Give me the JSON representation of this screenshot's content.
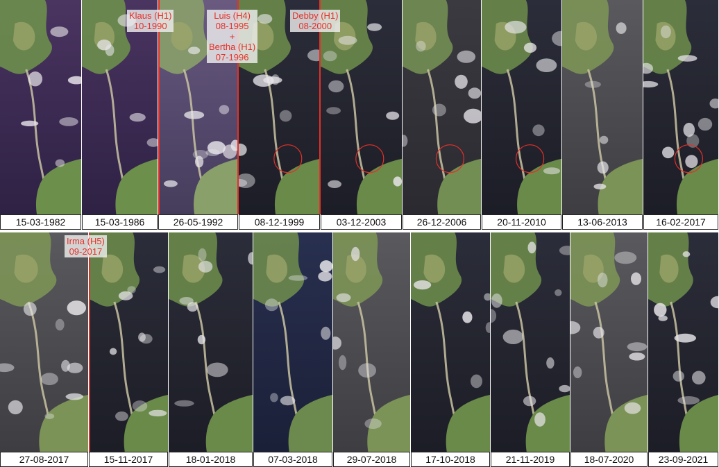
{
  "colors": {
    "event_line": "#e53028",
    "caption_text": "#111111",
    "caption_border": "#222222"
  },
  "figure": {
    "rows": [
      {
        "panels": [
          {
            "date": "15-03-1982",
            "tone": "purple"
          },
          {
            "date": "15-03-1986",
            "tone": "purple"
          },
          {
            "date": "26-05-1992",
            "tone": "violet-haze"
          },
          {
            "date": "08-12-1999",
            "tone": "dark",
            "circle": true
          },
          {
            "date": "03-12-2003",
            "tone": "dark",
            "circle": true
          },
          {
            "date": "26-12-2006",
            "tone": "dark-grey",
            "circle": true
          },
          {
            "date": "20-11-2010",
            "tone": "dark",
            "circle": true
          },
          {
            "date": "13-06-2013",
            "tone": "grey"
          },
          {
            "date": "16-02-2017",
            "tone": "dark",
            "circle": true
          }
        ],
        "events": [
          {
            "lines": [
              "Klaus (H1)",
              "10-1990"
            ]
          },
          {
            "lines": [
              "Luis (H4)",
              "08-1995",
              "+",
              "Bertha (H1)",
              "07-1996"
            ]
          },
          {
            "lines": [
              "Debby (H1)",
              "08-2000"
            ]
          }
        ]
      },
      {
        "panels": [
          {
            "date": "27-08-2017",
            "tone": "grey"
          },
          {
            "date": "15-11-2017",
            "tone": "dark"
          },
          {
            "date": "18-01-2018",
            "tone": "dark"
          },
          {
            "date": "07-03-2018",
            "tone": "blue-dark"
          },
          {
            "date": "29-07-2018",
            "tone": "grey"
          },
          {
            "date": "17-10-2018",
            "tone": "dark"
          },
          {
            "date": "21-11-2019",
            "tone": "dark"
          },
          {
            "date": "18-07-2020",
            "tone": "grey"
          },
          {
            "date": "23-09-2021",
            "tone": "dark"
          }
        ],
        "events": [
          {
            "lines": [
              "Irma (H5)",
              "09-2017"
            ]
          }
        ]
      }
    ]
  }
}
